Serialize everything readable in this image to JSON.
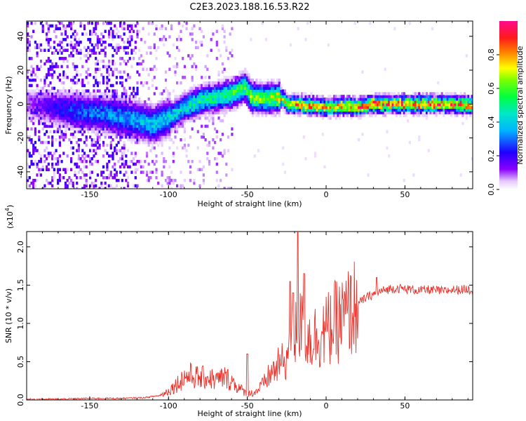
{
  "title": "C2E3.2023.188.16.53.R22",
  "colors": {
    "snr_line": "#e8322b",
    "axis": "#000000",
    "background": "#ffffff"
  },
  "chart_data": [
    {
      "type": "heatmap",
      "xlabel": "Height of straight line (km)",
      "ylabel": "Frequency (Hz)",
      "xlim": [
        -190,
        93
      ],
      "ylim": [
        -50,
        49
      ],
      "xticks": [
        -150,
        -100,
        -50,
        0,
        50
      ],
      "yticks": [
        -40,
        -20,
        0,
        20,
        40
      ],
      "colorbar": {
        "label": "Normalized spectral amplitude",
        "range": [
          0.0,
          1.0
        ],
        "ticks": [
          0.0,
          0.2,
          0.4,
          0.6,
          0.8
        ],
        "tick_labels": [
          "0.0",
          "0.2",
          "0.4",
          "0.6",
          "0.8"
        ],
        "colormap": "rainbow (white→purple→blue→cyan→green→yellow→red→magenta)"
      },
      "ridge": {
        "description": "dominant frequency ridge vs height",
        "x": [
          -190,
          -160,
          -140,
          -120,
          -110,
          -100,
          -90,
          -80,
          -70,
          -60,
          -52,
          -48,
          -40,
          -30,
          -25,
          -20,
          -10,
          0,
          10,
          20,
          30,
          40,
          50,
          60,
          70,
          80,
          93
        ],
        "y": [
          0,
          -4,
          -6,
          -10,
          -12,
          -8,
          -2,
          2,
          4,
          6,
          10,
          4,
          3,
          4,
          0,
          0,
          -1,
          -2,
          -1,
          -2,
          0,
          0,
          0,
          0,
          0,
          0,
          -1
        ],
        "peak_amplitude": [
          0.1,
          0.3,
          0.35,
          0.4,
          0.45,
          0.45,
          0.5,
          0.55,
          0.55,
          0.6,
          0.65,
          0.7,
          0.7,
          0.8,
          0.85,
          0.9,
          0.85,
          0.85,
          0.85,
          0.9,
          0.95,
          0.95,
          0.95,
          0.95,
          0.95,
          0.95,
          0.9
        ]
      }
    },
    {
      "type": "line",
      "xlabel": "Height of straight line (km)",
      "ylabel": "SNR (10 * v/v)",
      "yscale_label": "(x10",
      "yscale_exp": "4",
      "yscale_close": ")",
      "xlim": [
        -190,
        93
      ],
      "ylim": [
        0,
        2.2
      ],
      "xticks": [
        -150,
        -100,
        -50,
        0,
        50
      ],
      "yticks": [
        0.0,
        0.5,
        1.0,
        1.5,
        2.0
      ],
      "ytick_labels": [
        "0.0",
        "0.5",
        "1.0",
        "1.5",
        "2.0"
      ],
      "series": [
        {
          "color": "#e8322b",
          "x": [
            -190,
            -170,
            -150,
            -130,
            -115,
            -105,
            -100,
            -95,
            -90,
            -85,
            -80,
            -75,
            -70,
            -65,
            -60,
            -55,
            -50,
            -45,
            -40,
            -35,
            -30,
            -25,
            -22,
            -20,
            -18,
            -15,
            -12,
            -10,
            -5,
            0,
            5,
            10,
            15,
            20,
            25,
            30,
            35,
            40,
            45,
            50,
            55,
            60,
            65,
            70,
            75,
            80,
            85,
            90,
            93
          ],
          "y": [
            0.01,
            0.01,
            0.02,
            0.02,
            0.03,
            0.06,
            0.12,
            0.2,
            0.3,
            0.32,
            0.28,
            0.3,
            0.25,
            0.3,
            0.25,
            0.15,
            0.08,
            0.1,
            0.2,
            0.35,
            0.45,
            0.55,
            0.75,
            0.8,
            1.0,
            0.9,
            0.85,
            0.8,
            0.85,
            0.9,
            1.0,
            1.05,
            1.15,
            1.25,
            1.33,
            1.38,
            1.42,
            1.45,
            1.46,
            1.45,
            1.44,
            1.43,
            1.44,
            1.43,
            1.42,
            1.44,
            1.44,
            1.45,
            1.42
          ],
          "spikes": [
            {
              "x": -50,
              "y": 0.6
            },
            {
              "x": -23,
              "y": 1.55
            },
            {
              "x": -21,
              "y": 1.4
            },
            {
              "x": -18,
              "y": 2.2
            },
            {
              "x": -14,
              "y": 1.65
            },
            {
              "x": 32,
              "y": 1.6
            }
          ]
        }
      ]
    }
  ]
}
